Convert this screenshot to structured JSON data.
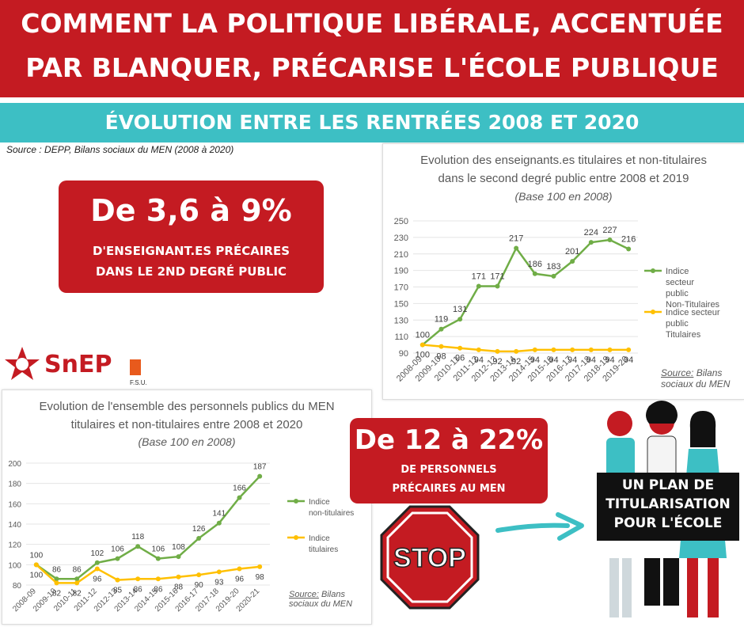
{
  "header": {
    "line1": "COMMENT LA POLITIQUE LIBÉRALE, ACCENTUÉE",
    "line2": "PAR BLANQUER, PRÉCARISE  L'ÉCOLE  PUBLIQUE",
    "subtitle": "ÉVOLUTION ENTRE LES RENTRÉES  2008  ET  2020",
    "source": "Source : DEPP, Bilans sociaux du MEN (2008 à 2020)"
  },
  "stat1": {
    "big": "De 3,6 à 9%",
    "line1": "D'ENSEIGNANT.ES  PRÉCAIRES",
    "line2": "DANS  LE 2ND DEGRÉ PUBLIC"
  },
  "stat2": {
    "big": "De 12 à 22%",
    "line1": "DE PERSONNELS",
    "line2": "PRÉCAIRES AU MEN"
  },
  "logo": {
    "text": "SnEP",
    "tag": "F.S.U."
  },
  "stop_sign": {
    "text": "STOP"
  },
  "plan_sign": {
    "line1": "UN PLAN DE",
    "line2": "TITULARISATION",
    "line3": "POUR L'ÉCOLE"
  },
  "colors": {
    "red": "#c41b22",
    "teal": "#3dbfc4",
    "green": "#70ad47",
    "yellow": "#ffc000"
  },
  "chart_data": [
    {
      "type": "line",
      "title": "Evolution des enseignants.es titulaires et non-titulaires dans le second degré public entre 2008 et 2019",
      "title_line1": "Evolution des enseignants.es titulaires et non-titulaires",
      "title_line2": "dans le second degré public entre 2008 et 2019",
      "subtitle": "(Base 100 en 2008)",
      "categories": [
        "2008-09",
        "2009-10",
        "2010-11",
        "2011-12",
        "2012-13",
        "2013-14",
        "2014-15",
        "2015-16",
        "2016-17",
        "2017-18",
        "2018-19",
        "2019-20"
      ],
      "series": [
        {
          "name": "Indice secteur public Non-Titulaires",
          "values": [
            100,
            119,
            131,
            171,
            171,
            217,
            186,
            183,
            201,
            224,
            227,
            216
          ],
          "color": "#70ad47"
        },
        {
          "name": "Indice secteur public Titulaires",
          "values": [
            100,
            98,
            96,
            94,
            92,
            92,
            94,
            94,
            94,
            94,
            94,
            94
          ],
          "color": "#ffc000"
        }
      ],
      "yticks": [
        90,
        110,
        130,
        150,
        170,
        190,
        210,
        230,
        250
      ],
      "ylim": [
        90,
        250
      ],
      "source_label": "Source:",
      "source_rest": "  Bilans",
      "source_line2": "sociaux du MEN",
      "legend": "right"
    },
    {
      "type": "line",
      "title": "Evolution de l'ensemble des personnels publics du MEN titulaires et non-titulaires entre 2008 et 2020",
      "title_line1": "Evolution de l'ensemble des personnels publics du MEN",
      "title_line2": "titulaires et non-titulaires entre 2008 et 2020",
      "subtitle": "(Base 100 en 2008)",
      "categories": [
        "2008-09",
        "2009-10",
        "2010-11",
        "2011-12",
        "2012-13",
        "2013-14",
        "2014-15",
        "2015-16",
        "2016-17",
        "2017-18",
        "2019-20",
        "2020-21"
      ],
      "series": [
        {
          "name": "Indice non-titulaires",
          "values": [
            100,
            86,
            86,
            102,
            106,
            118,
            106,
            108,
            126,
            141,
            166,
            187
          ],
          "color": "#70ad47"
        },
        {
          "name": "Indice titulaires",
          "values": [
            100,
            82,
            82,
            96,
            85,
            86,
            86,
            88,
            90,
            93,
            96,
            98
          ],
          "color": "#ffc000"
        }
      ],
      "yticks": [
        80,
        100,
        120,
        140,
        160,
        180,
        200
      ],
      "ylim": [
        80,
        200
      ],
      "source_label": "Source:",
      "source_rest": " Bilans",
      "source_line2": "sociaux du MEN",
      "legend": "right"
    }
  ]
}
